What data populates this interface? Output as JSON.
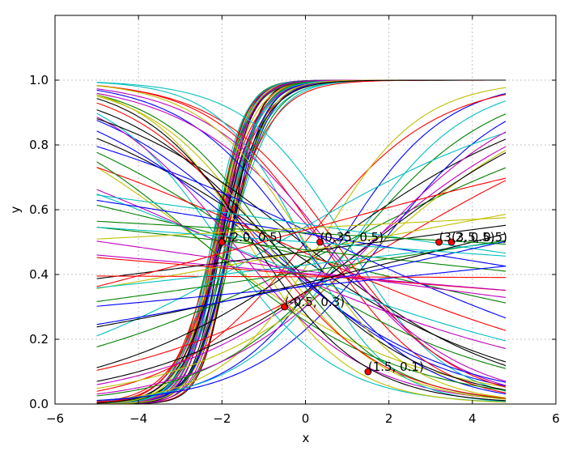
{
  "chart_data": {
    "type": "line",
    "title": "",
    "xlabel": "x",
    "ylabel": "y",
    "xlim": [
      -6,
      6
    ],
    "ylim": [
      0.0,
      1.2
    ],
    "x_ticks": [
      "−6",
      "−4",
      "−2",
      "0",
      "2",
      "4",
      "6"
    ],
    "y_ticks": [
      "0.0",
      "0.2",
      "0.4",
      "0.6",
      "0.8",
      "1.0"
    ],
    "grid": true,
    "x_range_of_curves": [
      -5.0,
      4.8
    ],
    "palette": [
      "#0000ff",
      "#008000",
      "#ff0000",
      "#00bfbf",
      "#bf00bf",
      "#bfbf00",
      "#000000"
    ],
    "series_note": "Dozens of logistic curves y = 1/(1+exp(-(a + b·x))) with varying a, b",
    "annotations": [
      {
        "x": -2.0,
        "y": 0.5,
        "label": "(-2.0, 0.5)"
      },
      {
        "x": 0.35,
        "y": 0.5,
        "label": "(0.35, 0.5)"
      },
      {
        "x": -0.5,
        "y": 0.3,
        "label": "(-0.5, 0.3)"
      },
      {
        "x": 1.5,
        "y": 0.1,
        "label": "(1.5, 0.1)"
      },
      {
        "x": 3.2,
        "y": 0.5,
        "label": "(3.2, 0.5)"
      },
      {
        "x": 3.5,
        "y": 0.5,
        "label": "(3.5, 0.5)"
      }
    ]
  }
}
